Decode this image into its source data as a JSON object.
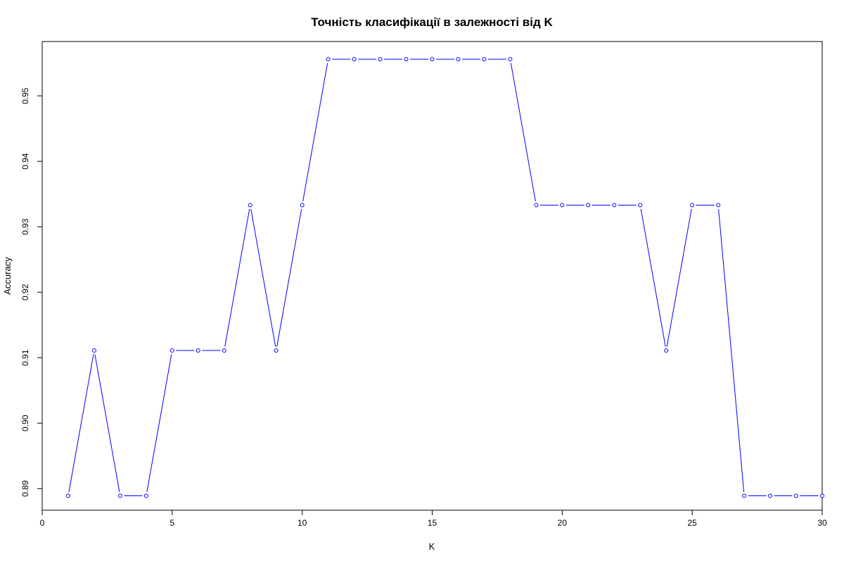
{
  "chart_data": {
    "type": "line",
    "title": "Точність класифікації в залежності від K",
    "xlabel": "K",
    "ylabel": "Accuracy",
    "xlim": [
      0,
      30
    ],
    "ylim": [
      0.8867,
      0.9583
    ],
    "x_ticks": [
      0,
      5,
      10,
      15,
      20,
      25,
      30
    ],
    "x_tick_labels": [
      "0",
      "5",
      "10",
      "15",
      "20",
      "25",
      "30"
    ],
    "y_ticks": [
      0.89,
      0.9,
      0.91,
      0.92,
      0.93,
      0.94,
      0.95
    ],
    "y_tick_labels": [
      "0.89",
      "0.90",
      "0.91",
      "0.92",
      "0.93",
      "0.94",
      "0.95"
    ],
    "grid": false,
    "line_color": "#0000ff",
    "series": [
      {
        "x": [
          1,
          2,
          3,
          4,
          5,
          6,
          7,
          8,
          9,
          10,
          11,
          12,
          13,
          14,
          15,
          16,
          17,
          18,
          19,
          20,
          21,
          22,
          23,
          24,
          25,
          26,
          27,
          28,
          29,
          30
        ],
        "values": [
          0.8889,
          0.9111,
          0.8889,
          0.8889,
          0.9111,
          0.9111,
          0.9111,
          0.9333,
          0.9111,
          0.9333,
          0.9556,
          0.9556,
          0.9556,
          0.9556,
          0.9556,
          0.9556,
          0.9556,
          0.9556,
          0.9333,
          0.9333,
          0.9333,
          0.9333,
          0.9333,
          0.9111,
          0.9333,
          0.9333,
          0.8889,
          0.8889,
          0.8889,
          0.8889
        ]
      }
    ]
  }
}
